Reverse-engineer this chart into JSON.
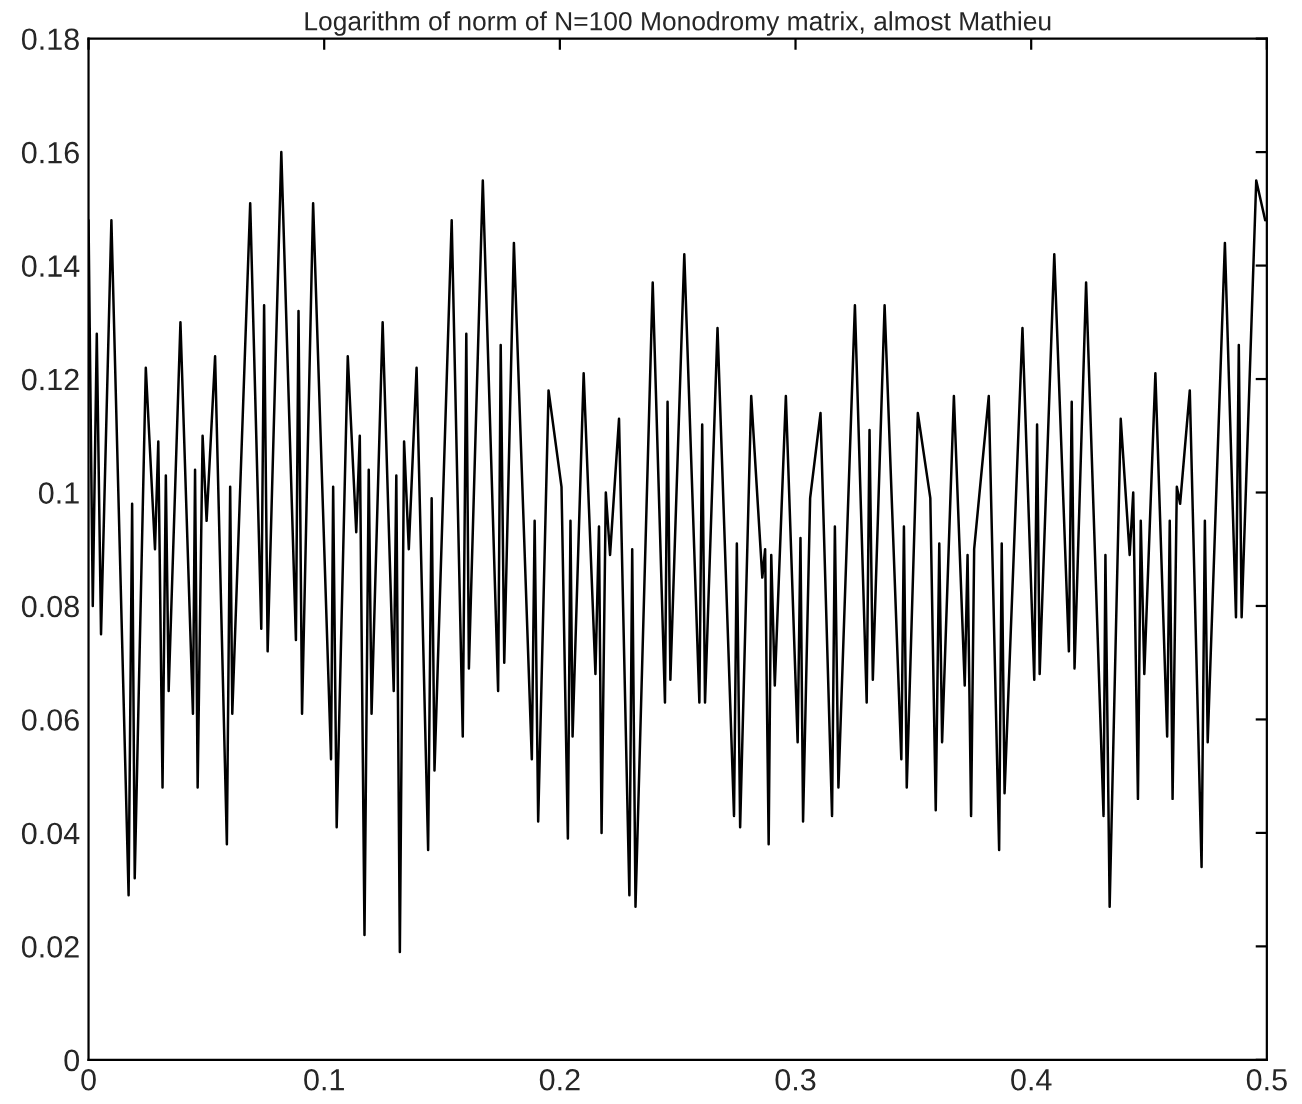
{
  "chart_data": {
    "type": "line",
    "title": "Logarithm of norm of N=100 Monodromy matrix, almost Mathieu",
    "series": [
      {
        "color": "#000000",
        "x": [
          0.0,
          0.0018,
          0.0035,
          0.0053,
          0.0097,
          0.017,
          0.0185,
          0.0196,
          0.0243,
          0.0282,
          0.0296,
          0.0314,
          0.0328,
          0.034,
          0.039,
          0.0443,
          0.0452,
          0.0463,
          0.0484,
          0.0501,
          0.0537,
          0.0587,
          0.0601,
          0.061,
          0.0686,
          0.0733,
          0.0745,
          0.076,
          0.0818,
          0.088,
          0.0891,
          0.0906,
          0.0953,
          0.1029,
          0.1038,
          0.1053,
          0.11,
          0.1136,
          0.1151,
          0.1171,
          0.1189,
          0.1201,
          0.1248,
          0.1295,
          0.1306,
          0.1321,
          0.1339,
          0.1359,
          0.1392,
          0.1441,
          0.1456,
          0.1468,
          0.1541,
          0.1588,
          0.1603,
          0.1614,
          0.1673,
          0.1738,
          0.1749,
          0.1764,
          0.1805,
          0.1881,
          0.1893,
          0.1908,
          0.1952,
          0.2007,
          0.2034,
          0.2045,
          0.2054,
          0.2101,
          0.2151,
          0.2166,
          0.2177,
          0.2195,
          0.2213,
          0.2251,
          0.2295,
          0.2307,
          0.2321,
          0.2394,
          0.2446,
          0.2457,
          0.2469,
          0.2528,
          0.2592,
          0.2604,
          0.2616,
          0.2669,
          0.2739,
          0.2751,
          0.2765,
          0.2812,
          0.2859,
          0.2871,
          0.2886,
          0.2897,
          0.2912,
          0.2959,
          0.3009,
          0.3021,
          0.3032,
          0.3062,
          0.3106,
          0.3155,
          0.3167,
          0.3182,
          0.3252,
          0.3302,
          0.3314,
          0.3328,
          0.3378,
          0.3449,
          0.346,
          0.3472,
          0.3519,
          0.3572,
          0.3595,
          0.361,
          0.3622,
          0.3672,
          0.3718,
          0.373,
          0.3745,
          0.3758,
          0.382,
          0.3864,
          0.3875,
          0.3887,
          0.3963,
          0.4013,
          0.4025,
          0.4036,
          0.4098,
          0.416,
          0.4172,
          0.4184,
          0.4233,
          0.4307,
          0.4315,
          0.4333,
          0.438,
          0.4418,
          0.4433,
          0.4453,
          0.4465,
          0.448,
          0.4527,
          0.4577,
          0.4588,
          0.46,
          0.4618,
          0.4632,
          0.4673,
          0.4723,
          0.4737,
          0.4749,
          0.4822,
          0.4869,
          0.4881,
          0.4893,
          0.4955,
          0.4993
        ],
        "values": [
          0.148,
          0.08,
          0.128,
          0.075,
          0.148,
          0.029,
          0.098,
          0.032,
          0.122,
          0.09,
          0.109,
          0.048,
          0.103,
          0.065,
          0.13,
          0.061,
          0.104,
          0.048,
          0.11,
          0.095,
          0.124,
          0.038,
          0.101,
          0.061,
          0.151,
          0.076,
          0.133,
          0.072,
          0.16,
          0.074,
          0.132,
          0.061,
          0.151,
          0.053,
          0.101,
          0.041,
          0.124,
          0.093,
          0.11,
          0.022,
          0.104,
          0.061,
          0.13,
          0.065,
          0.103,
          0.019,
          0.109,
          0.09,
          0.122,
          0.037,
          0.099,
          0.051,
          0.148,
          0.057,
          0.128,
          0.069,
          0.155,
          0.065,
          0.126,
          0.07,
          0.144,
          0.053,
          0.095,
          0.042,
          0.118,
          0.101,
          0.039,
          0.095,
          0.057,
          0.121,
          0.068,
          0.094,
          0.04,
          0.1,
          0.089,
          0.113,
          0.029,
          0.09,
          0.027,
          0.137,
          0.063,
          0.116,
          0.067,
          0.142,
          0.063,
          0.112,
          0.063,
          0.129,
          0.043,
          0.091,
          0.041,
          0.117,
          0.085,
          0.09,
          0.038,
          0.089,
          0.066,
          0.117,
          0.056,
          0.092,
          0.042,
          0.099,
          0.114,
          0.043,
          0.094,
          0.048,
          0.133,
          0.063,
          0.111,
          0.067,
          0.133,
          0.053,
          0.094,
          0.048,
          0.114,
          0.099,
          0.044,
          0.091,
          0.056,
          0.117,
          0.066,
          0.089,
          0.043,
          0.09,
          0.117,
          0.037,
          0.091,
          0.047,
          0.129,
          0.067,
          0.112,
          0.068,
          0.142,
          0.072,
          0.116,
          0.069,
          0.137,
          0.043,
          0.089,
          0.027,
          0.113,
          0.089,
          0.1,
          0.046,
          0.095,
          0.068,
          0.121,
          0.057,
          0.095,
          0.046,
          0.101,
          0.098,
          0.118,
          0.034,
          0.095,
          0.056,
          0.144,
          0.078,
          0.126,
          0.078,
          0.155,
          0.148
        ]
      }
    ],
    "xlim": [
      0,
      0.5
    ],
    "xticks": [
      0,
      0.1,
      0.2,
      0.3,
      0.4,
      0.5
    ],
    "ylim": [
      0,
      0.18
    ],
    "yticks": [
      0,
      0.02,
      0.04,
      0.06,
      0.08,
      0.1,
      0.12,
      0.14,
      0.16,
      0.18
    ],
    "grid": false,
    "legend": false,
    "marker": "none",
    "line_style": "solid"
  }
}
